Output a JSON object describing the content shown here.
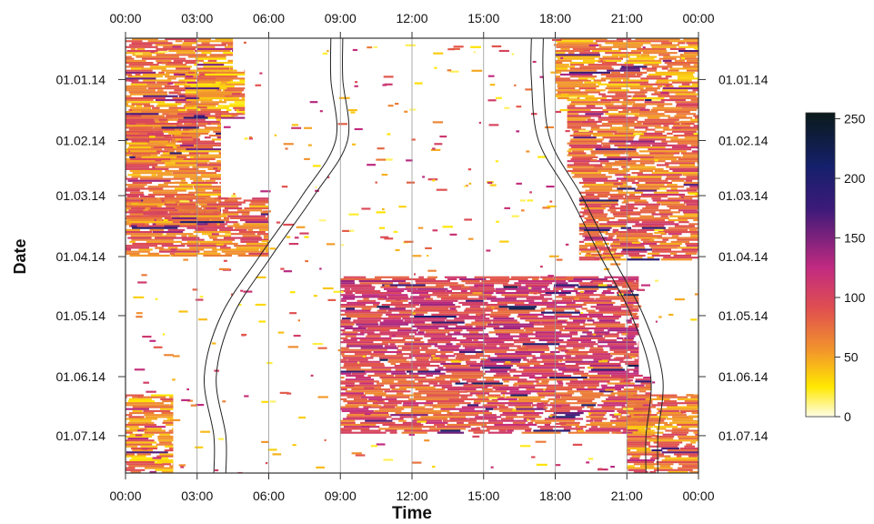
{
  "chart_data": {
    "type": "heatmap",
    "title": "",
    "xlabel": "Time",
    "ylabel": "Date",
    "x_ticks": [
      "00:00",
      "03:00",
      "06:00",
      "09:00",
      "12:00",
      "15:00",
      "18:00",
      "21:00",
      "00:00"
    ],
    "y_ticks": [
      "01.01.14",
      "01.02.14",
      "01.03.14",
      "01.04.14",
      "01.05.14",
      "01.06.14",
      "01.07.14"
    ],
    "x_range_hours": [
      0,
      24
    ],
    "y_range_days": [
      -21,
      200
    ],
    "y_tick_days": [
      0,
      31,
      59,
      90,
      120,
      151,
      181
    ],
    "colorbar": {
      "ticks": [
        "0",
        "50",
        "100",
        "150",
        "200",
        "250"
      ],
      "range": [
        0,
        255
      ],
      "stops": [
        {
          "v": 0,
          "color": "#fffde8"
        },
        {
          "v": 25,
          "color": "#ffe800"
        },
        {
          "v": 55,
          "color": "#f2962b"
        },
        {
          "v": 90,
          "color": "#e0504e"
        },
        {
          "v": 125,
          "color": "#c12a80"
        },
        {
          "v": 175,
          "color": "#3b1a79"
        },
        {
          "v": 210,
          "color": "#15206b"
        },
        {
          "v": 255,
          "color": "#0a1a1a"
        }
      ]
    },
    "activity_blocks": [
      {
        "days": [
          -21,
          43
        ],
        "start_h": 0,
        "end_h": 3.0,
        "value": 65
      },
      {
        "days": [
          -21,
          10
        ],
        "start_h": 3.0,
        "end_h": 4.5,
        "value": 60
      },
      {
        "days": [
          -5,
          20
        ],
        "start_h": 2.5,
        "end_h": 5.0,
        "value": 55
      },
      {
        "days": [
          15,
          75
        ],
        "start_h": 0,
        "end_h": 4.0,
        "value": 70
      },
      {
        "days": [
          60,
          90
        ],
        "start_h": 0,
        "end_h": 6.0,
        "value": 75
      },
      {
        "days": [
          -21,
          10
        ],
        "start_h": 18.0,
        "end_h": 24,
        "value": 65
      },
      {
        "days": [
          10,
          50
        ],
        "start_h": 18.5,
        "end_h": 24,
        "value": 75
      },
      {
        "days": [
          50,
          92
        ],
        "start_h": 19.0,
        "end_h": 24,
        "value": 80
      },
      {
        "days": [
          100,
          150
        ],
        "start_h": 9.0,
        "end_h": 21.5,
        "value": 105
      },
      {
        "days": [
          150,
          180
        ],
        "start_h": 9.0,
        "end_h": 22.0,
        "value": 90
      },
      {
        "days": [
          160,
          200
        ],
        "start_h": 21.0,
        "end_h": 24,
        "value": 70
      },
      {
        "days": [
          160,
          200
        ],
        "start_h": 0,
        "end_h": 2.0,
        "value": 60
      }
    ],
    "twilight_curves": {
      "sunrise_h": [
        8.6,
        8.8,
        7.4,
        5.6,
        4.0,
        3.3,
        3.7
      ],
      "sunset_h": [
        17.0,
        17.3,
        18.6,
        19.9,
        21.2,
        22.0,
        21.8
      ],
      "offset_h": [
        0.5,
        0.5,
        0.5,
        0.5,
        0.5,
        0.5,
        0.5
      ]
    },
    "grid": true
  }
}
